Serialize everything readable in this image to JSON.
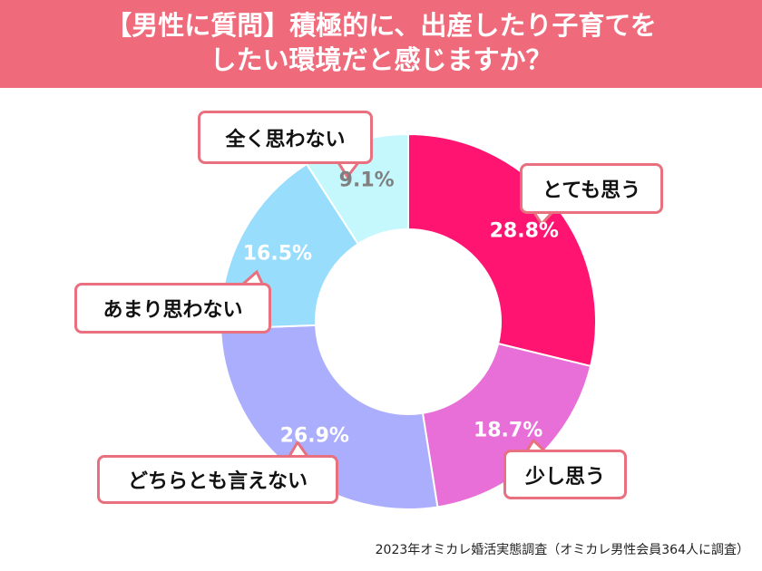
{
  "title_lines": [
    "【男性に質問】積極的に、出産したり子育てを",
    "したい環境だと感じますか？"
  ],
  "chart_data": {
    "type": "pie",
    "donut": true,
    "title": "【男性に質問】積極的に、出産したり子育てをしたい環境だと感じますか？",
    "categories": [
      "とても思う",
      "少し思う",
      "どちらとも言えない",
      "あまり思わない",
      "全く思わない"
    ],
    "values": [
      28.8,
      18.7,
      26.9,
      16.5,
      9.1
    ],
    "labels": [
      "28.8%",
      "18.7%",
      "26.9%",
      "16.5%",
      "9.1%"
    ],
    "colors": [
      "#ff1472",
      "#e86fd8",
      "#abaefc",
      "#99ddfd",
      "#c5f8fd"
    ],
    "label_colors": [
      "#ffffff",
      "#ffffff",
      "#ffffff",
      "#ffffff",
      "#808080"
    ],
    "start": "top",
    "direction": "clockwise"
  },
  "source": "2023年オミカレ婚活実態調査（オミカレ男性会員364人に調査）",
  "accent_color": "#ef6b7b"
}
